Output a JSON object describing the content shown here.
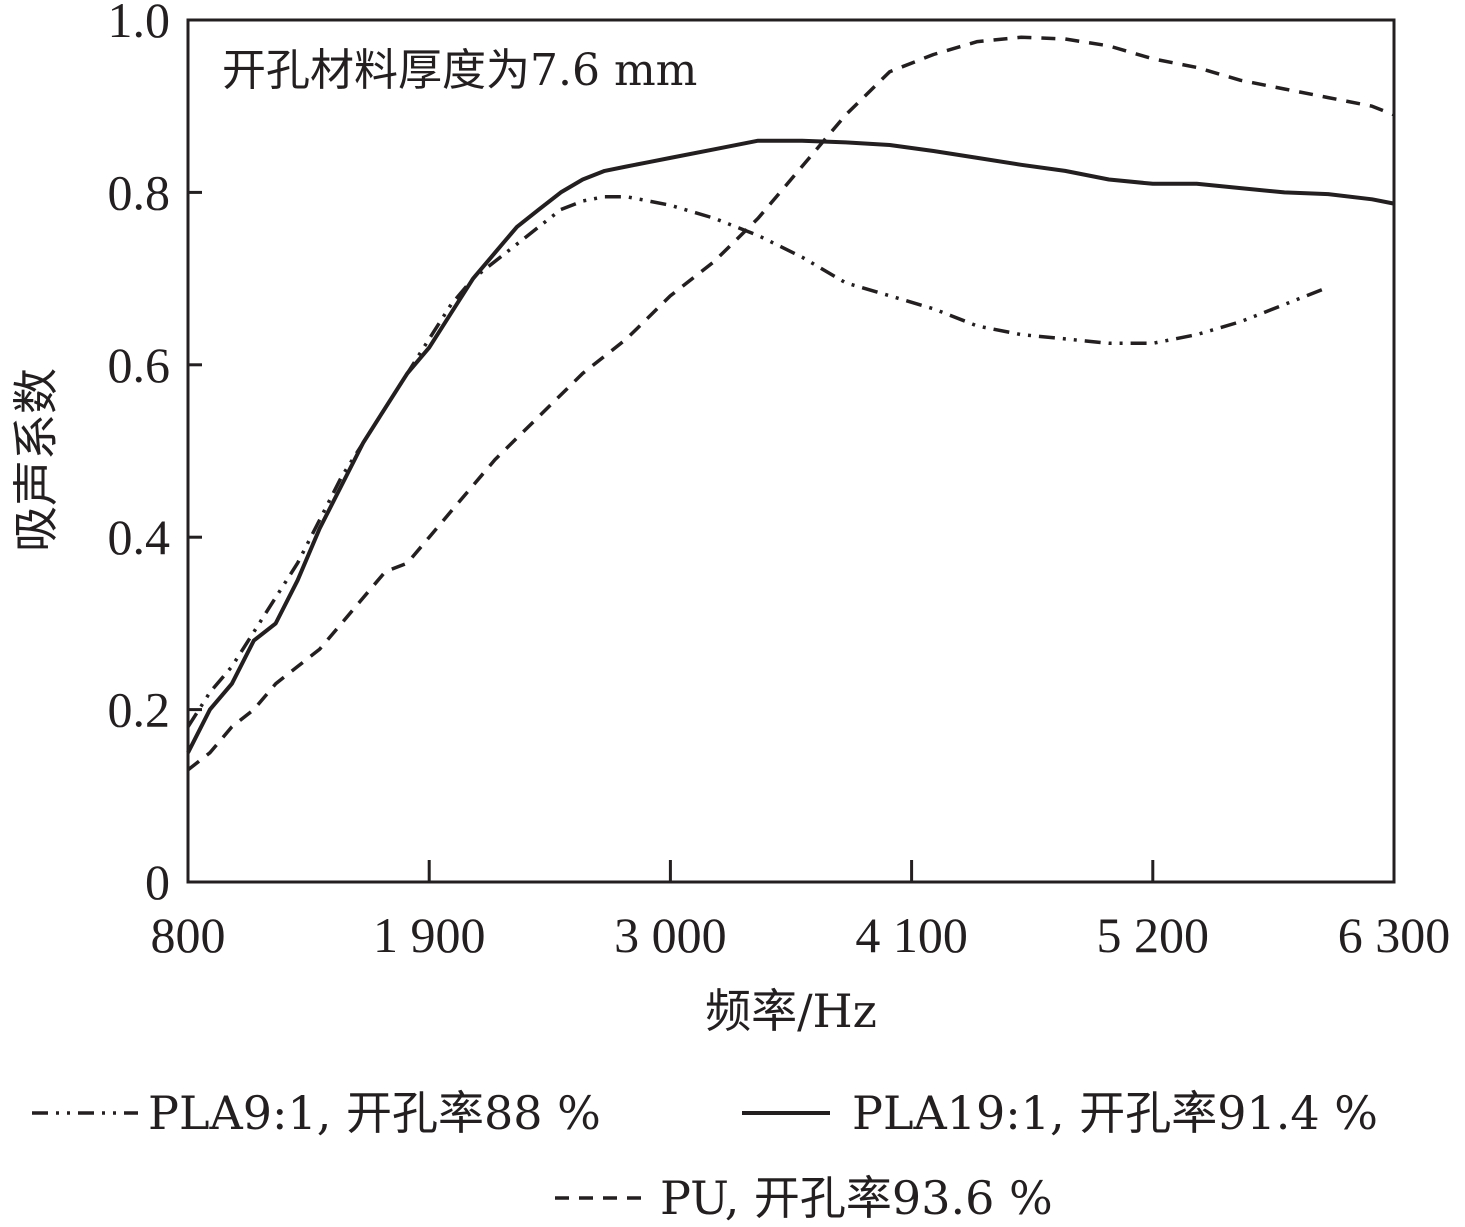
{
  "chart_data": {
    "type": "line",
    "title": "",
    "annotation": "开孔材料厚度为7.6 mm",
    "xlabel": "频率/Hz",
    "ylabel": "吸声系数",
    "xlim": [
      800,
      6300
    ],
    "ylim": [
      0,
      1.0
    ],
    "x_ticks": [
      800,
      1900,
      3000,
      4100,
      5200,
      6300
    ],
    "x_tick_labels": [
      "800",
      "1 900",
      "3 000",
      "4 100",
      "5 200",
      "6 300"
    ],
    "y_ticks": [
      0,
      0.2,
      0.4,
      0.6,
      0.8,
      1.0
    ],
    "y_tick_labels": [
      "0",
      "0.2",
      "0.4",
      "0.6",
      "0.8",
      "1.0"
    ],
    "grid": false,
    "legend_position": "bottom",
    "series": [
      {
        "name": "PLA9:1, 开孔率88 %",
        "style": "dash-dot-dot",
        "color": "#231f20",
        "x": [
          800,
          900,
          1000,
          1100,
          1200,
          1300,
          1400,
          1500,
          1600,
          1700,
          1800,
          1900,
          2000,
          2100,
          2200,
          2300,
          2400,
          2500,
          2600,
          2700,
          2800,
          2900,
          3000,
          3200,
          3400,
          3600,
          3800,
          4000,
          4200,
          4400,
          4600,
          4800,
          5000,
          5200,
          5400,
          5600,
          5800,
          6000
        ],
        "y": [
          0.18,
          0.22,
          0.25,
          0.29,
          0.33,
          0.37,
          0.42,
          0.47,
          0.51,
          0.55,
          0.59,
          0.63,
          0.67,
          0.7,
          0.72,
          0.74,
          0.76,
          0.78,
          0.79,
          0.795,
          0.795,
          0.79,
          0.785,
          0.77,
          0.75,
          0.725,
          0.695,
          0.68,
          0.665,
          0.645,
          0.635,
          0.63,
          0.625,
          0.625,
          0.635,
          0.65,
          0.67,
          0.69
        ]
      },
      {
        "name": "PLA19:1, 开孔率91.4 %",
        "style": "solid",
        "color": "#231f20",
        "x": [
          800,
          900,
          1000,
          1100,
          1200,
          1300,
          1400,
          1500,
          1600,
          1700,
          1800,
          1900,
          2000,
          2100,
          2200,
          2300,
          2400,
          2500,
          2600,
          2700,
          2800,
          2900,
          3000,
          3200,
          3400,
          3600,
          3800,
          4000,
          4200,
          4400,
          4600,
          4800,
          5000,
          5200,
          5400,
          5600,
          5800,
          6000,
          6200,
          6300
        ],
        "y": [
          0.15,
          0.2,
          0.23,
          0.28,
          0.3,
          0.35,
          0.41,
          0.46,
          0.51,
          0.55,
          0.59,
          0.62,
          0.66,
          0.7,
          0.73,
          0.76,
          0.78,
          0.8,
          0.815,
          0.825,
          0.83,
          0.835,
          0.84,
          0.85,
          0.86,
          0.86,
          0.858,
          0.855,
          0.848,
          0.84,
          0.832,
          0.825,
          0.815,
          0.81,
          0.81,
          0.805,
          0.8,
          0.798,
          0.792,
          0.787
        ]
      },
      {
        "name": "PU, 开孔率93.6 %",
        "style": "dashed",
        "color": "#231f20",
        "x": [
          800,
          900,
          1000,
          1100,
          1200,
          1300,
          1400,
          1500,
          1600,
          1700,
          1800,
          1900,
          2000,
          2200,
          2400,
          2600,
          2800,
          3000,
          3200,
          3400,
          3600,
          3800,
          4000,
          4200,
          4400,
          4600,
          4800,
          5000,
          5200,
          5400,
          5600,
          5800,
          6000,
          6200,
          6300
        ],
        "y": [
          0.13,
          0.15,
          0.18,
          0.2,
          0.23,
          0.25,
          0.27,
          0.3,
          0.33,
          0.36,
          0.37,
          0.4,
          0.43,
          0.49,
          0.54,
          0.59,
          0.63,
          0.68,
          0.72,
          0.77,
          0.83,
          0.89,
          0.94,
          0.96,
          0.975,
          0.98,
          0.978,
          0.97,
          0.955,
          0.945,
          0.93,
          0.92,
          0.91,
          0.9,
          0.89
        ]
      }
    ]
  }
}
